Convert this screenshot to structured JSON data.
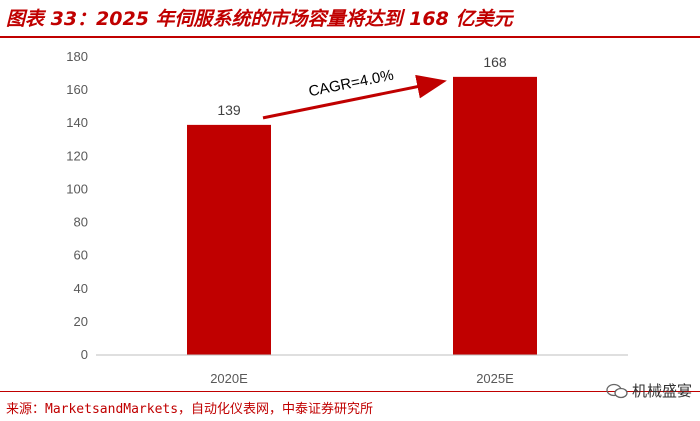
{
  "header": {
    "title": "图表 33：2025 年伺服系统的市场容量将达到 168 亿美元"
  },
  "footer": {
    "source": "来源：MarketsandMarkets，自动化仪表网，中泰证券研究所"
  },
  "watermark": {
    "text": "机械盛宴",
    "icon": "wechat-icon"
  },
  "colors": {
    "accent": "#c00000",
    "bar": "#c00000",
    "axis": "#bfbfbf",
    "text": "#595959"
  },
  "chart_data": {
    "type": "bar",
    "categories": [
      "2020E",
      "2025E"
    ],
    "values": [
      139,
      168
    ],
    "data_labels": [
      "139",
      "168"
    ],
    "ylim": [
      0,
      180
    ],
    "yticks": [
      0,
      20,
      40,
      60,
      80,
      100,
      120,
      140,
      160,
      180
    ],
    "grid": false,
    "annotation": {
      "text": "CAGR=4.0%",
      "arrow": "from 2020E bar toward 2025E bar"
    }
  }
}
